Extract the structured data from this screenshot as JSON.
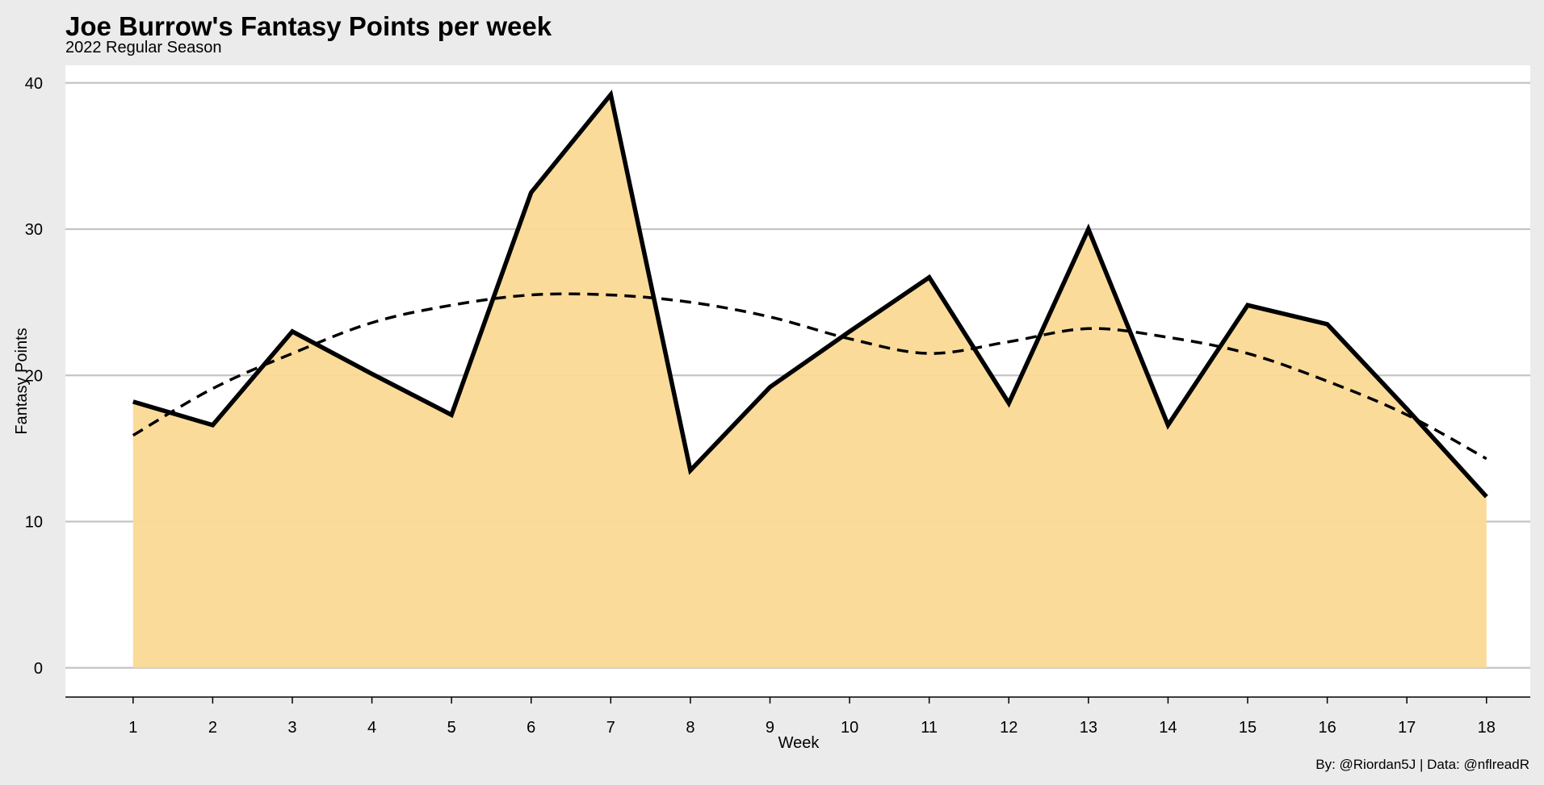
{
  "title": "Joe Burrow's Fantasy Points per week",
  "subtitle": "2022 Regular Season",
  "caption": "By: @Riordan5J | Data: @nflreadR",
  "colors": {
    "background": "#ebebeb",
    "panel": "#ffffff",
    "area_fill": "#fbd993",
    "line": "#000000",
    "grid": "#c4c4c4"
  },
  "chart_data": {
    "type": "area",
    "xlabel": "Week",
    "ylabel": "Fantasy Points",
    "xlim": [
      0.15,
      18.55
    ],
    "ylim": [
      -2,
      41.2
    ],
    "yticks": [
      0,
      10,
      20,
      30,
      40
    ],
    "x": [
      1,
      2,
      3,
      4,
      5,
      6,
      7,
      8,
      9,
      10,
      11,
      12,
      13,
      14,
      15,
      16,
      17,
      18
    ],
    "series": [
      {
        "style": "solid-line-with-filled-area",
        "values": [
          18.2,
          16.6,
          23.0,
          20.1,
          17.3,
          32.5,
          39.2,
          13.5,
          19.2,
          23.0,
          26.7,
          18.1,
          30.0,
          16.6,
          24.8,
          23.5,
          17.7,
          11.7
        ]
      },
      {
        "style": "dashed-smoothed-trend",
        "values": [
          15.9,
          19.1,
          21.5,
          23.6,
          24.8,
          25.5,
          25.5,
          25.0,
          24.0,
          22.5,
          21.5,
          22.3,
          23.2,
          22.6,
          21.5,
          19.6,
          17.3,
          14.3
        ]
      }
    ],
    "grid": "horizontal",
    "legend": "none"
  }
}
